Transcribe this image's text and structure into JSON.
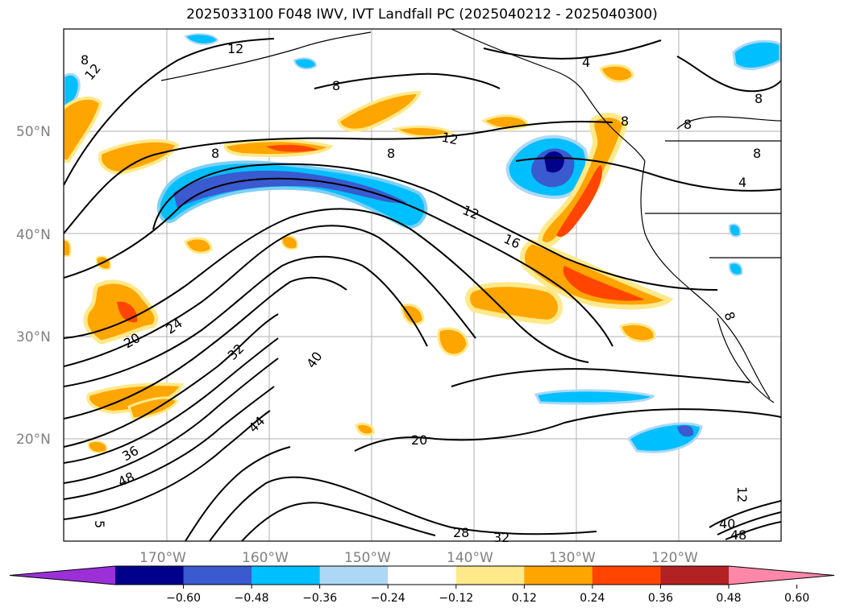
{
  "title": "2025033100 F048 IWV, IVT Landfall PC (2025040212 - 2025040300)",
  "map": {
    "lat_labels": [
      "50°N",
      "40°N",
      "30°N",
      "20°N"
    ],
    "lon_labels": [
      "170°W",
      "160°W",
      "150°W",
      "140°W",
      "130°W",
      "120°W"
    ],
    "contour_labels": [
      "12",
      "12",
      "8",
      "8",
      "8",
      "12",
      "12",
      "16",
      "8",
      "4",
      "8",
      "8",
      "8",
      "4",
      "8",
      "20",
      "24",
      "32",
      "40",
      "44",
      "36",
      "48",
      "20",
      "28",
      "32",
      "12",
      "5",
      "40",
      "48",
      "8"
    ]
  },
  "colorbar": {
    "tick_labels": [
      "−0.60",
      "−0.48",
      "−0.36",
      "−0.24",
      "−0.12",
      "0.12",
      "0.24",
      "0.36",
      "0.48",
      "0.60"
    ],
    "colors": [
      "#9b30d8",
      "#00008b",
      "#3a5ad0",
      "#00bfff",
      "#add8f5",
      "#ffffff",
      "#ffe98a",
      "#ffa500",
      "#ff4500",
      "#b22222",
      "#ff88aa"
    ]
  }
}
